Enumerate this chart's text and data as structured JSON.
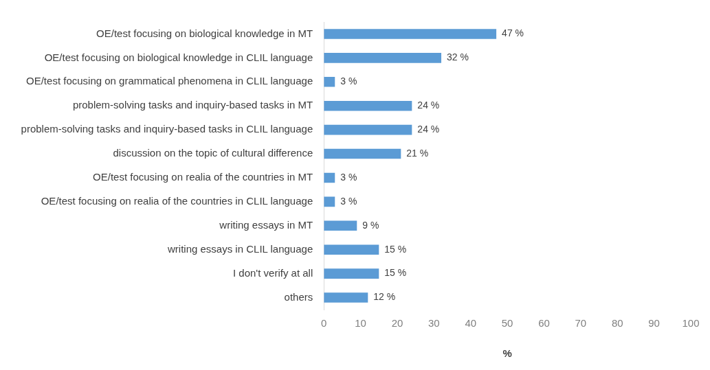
{
  "chart_data": {
    "type": "bar",
    "orientation": "horizontal",
    "xlabel": "%",
    "categories": [
      "OE/test focusing on biological knowledge in MT",
      "OE/test focusing on biological knowledge in CLIL language",
      "OE/test focusing on grammatical phenomena in CLIL language",
      "problem-solving tasks and inquiry-based tasks in MT",
      "problem-solving tasks and inquiry-based tasks in CLIL language",
      "discussion on the topic of cultural difference",
      "OE/test focusing on realia of the countries in MT",
      "OE/test focusing on realia of the countries in CLIL language",
      "writing essays in MT",
      "writing essays in CLIL language",
      "I don't verify at all",
      "others"
    ],
    "values": [
      47,
      32,
      3,
      24,
      24,
      21,
      3,
      3,
      9,
      15,
      15,
      12
    ],
    "value_labels": [
      "47 %",
      "32 %",
      "3 %",
      "24 %",
      "24 %",
      "21 %",
      "3 %",
      "3 %",
      "9 %",
      "15 %",
      "15 %",
      "12 %"
    ],
    "color": "#5b9bd5",
    "xlim": [
      0,
      100
    ],
    "xticks": [
      0,
      10,
      20,
      30,
      40,
      50,
      60,
      70,
      80,
      90,
      100
    ],
    "grid": false,
    "legend": false
  }
}
